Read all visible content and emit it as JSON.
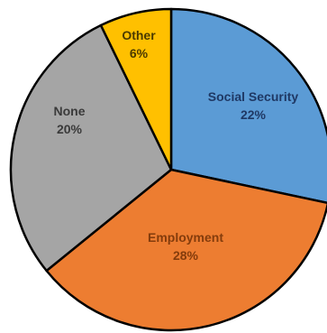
{
  "chart_data": {
    "type": "pie",
    "title": "",
    "slices": [
      {
        "label": "Social Security",
        "percent_label": "22%",
        "value": 22,
        "color": "#5b9bd5",
        "text_color": "#1f3864"
      },
      {
        "label": "Employment",
        "percent_label": "28%",
        "value": 28,
        "color": "#ed7d31",
        "text_color": "#843c0c"
      },
      {
        "label": "None",
        "percent_label": "20%",
        "value": 20,
        "color": "#a5a5a5",
        "text_color": "#3a3a3a"
      },
      {
        "label": "Other",
        "percent_label": "6%",
        "value": 6,
        "color": "#ffc000",
        "text_color": "#4a3a00"
      }
    ],
    "legend": "none"
  }
}
